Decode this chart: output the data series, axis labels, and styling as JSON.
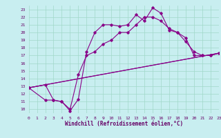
{
  "xlabel": "Windchill (Refroidissement éolien,°C)",
  "xlim": [
    0,
    23
  ],
  "ylim": [
    9.5,
    23.5
  ],
  "xticks": [
    0,
    1,
    2,
    3,
    4,
    5,
    6,
    7,
    8,
    9,
    10,
    11,
    12,
    13,
    14,
    15,
    16,
    17,
    18,
    19,
    20,
    21,
    22,
    23
  ],
  "yticks": [
    10,
    11,
    12,
    13,
    14,
    15,
    16,
    17,
    18,
    19,
    20,
    21,
    22,
    23
  ],
  "bg_color": "#c8eef0",
  "grid_color": "#a0d8c8",
  "line_color": "#880088",
  "line1_x": [
    0,
    2,
    3,
    4,
    5,
    6,
    7,
    8,
    9,
    10,
    11,
    12,
    13,
    14,
    15,
    16,
    17,
    18,
    19,
    20,
    21,
    22,
    23
  ],
  "line1_y": [
    12.8,
    13.2,
    11.2,
    11.0,
    9.8,
    11.3,
    17.5,
    20.0,
    21.0,
    21.0,
    20.8,
    21.0,
    22.3,
    21.5,
    23.2,
    22.5,
    20.3,
    20.0,
    19.3,
    17.0,
    17.0,
    17.0,
    17.3
  ],
  "line2_x": [
    0,
    2,
    3,
    4,
    5,
    6,
    7,
    8,
    9,
    10,
    11,
    12,
    13,
    14,
    15,
    16,
    17,
    18,
    19,
    20,
    21,
    22,
    23
  ],
  "line2_y": [
    12.8,
    11.2,
    11.2,
    11.0,
    10.0,
    14.5,
    17.0,
    17.5,
    18.5,
    19.0,
    20.0,
    20.0,
    21.0,
    22.0,
    22.0,
    21.5,
    20.5,
    20.0,
    18.8,
    17.5,
    17.0,
    17.0,
    17.3
  ],
  "line3_x": [
    0,
    23
  ],
  "line3_y": [
    12.8,
    17.3
  ],
  "line4_x": [
    0,
    23
  ],
  "line4_y": [
    12.8,
    17.3
  ],
  "marker": "D",
  "markersize": 1.8,
  "linewidth": 0.8,
  "font_color": "#660066",
  "tick_fontsize": 4.5,
  "label_fontsize": 5.5
}
